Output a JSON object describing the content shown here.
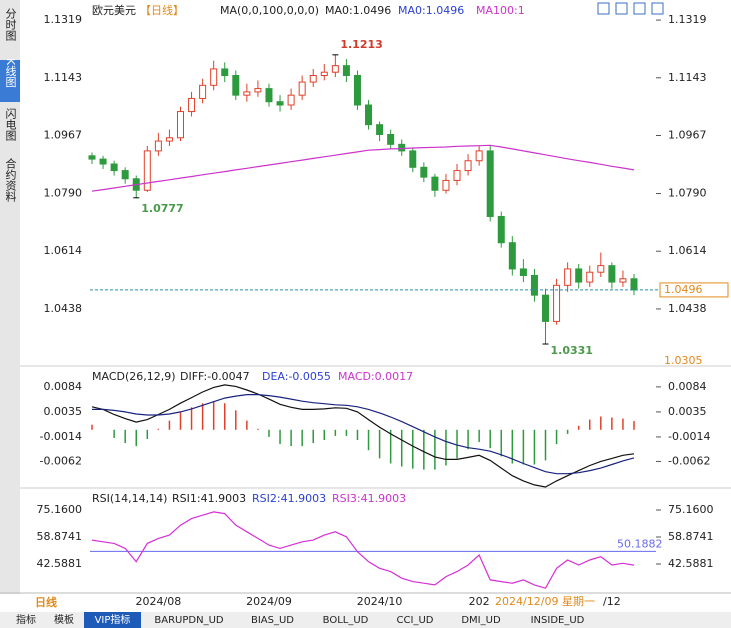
{
  "header": {
    "symbol": "欧元美元",
    "period": "【日线】",
    "ma_label": "MA(0,0,100,0,0,0)",
    "ma0_a": "MA0:1.0496",
    "ma0_b": "MA0:1.0496",
    "ma100": "MA100:1"
  },
  "sidebar": [
    "分时图",
    "K线图",
    "闪电图",
    "合约资料"
  ],
  "footer": {
    "period": "日线",
    "crosshair_date": "2024/12/09 星期一",
    "tabs": [
      "指标",
      "模板",
      "VIP指标",
      "BARUPDN_UD",
      "BIAS_UD",
      "BOLL_UD",
      "CCI_UD",
      "DMI_UD",
      "INSIDE_UD"
    ]
  },
  "chart_data": [
    {
      "type": "candlestick",
      "ylim": [
        1.0267,
        1.1365
      ],
      "yticks": [
        1.1319,
        1.1143,
        1.0967,
        {
          "value": 1.079,
          "label": "1.0790"
        },
        1.0614,
        1.0438
      ],
      "last_price": 1.0496,
      "bottom_price": 1.0305,
      "up_color": "#e0402a",
      "down_color": "#2e9a3e",
      "ma_color": "#cc33cc",
      "categories": [
        null,
        null,
        null,
        null,
        null,
        null,
        "2024/08",
        null,
        null,
        null,
        null,
        null,
        null,
        null,
        null,
        null,
        "2024/09",
        null,
        null,
        null,
        null,
        null,
        null,
        null,
        null,
        null,
        "2024/10",
        null,
        null,
        null,
        null,
        null,
        null,
        null,
        null,
        "202",
        null,
        null,
        null,
        null,
        null,
        null,
        null,
        null,
        null,
        null,
        null,
        "/12",
        null,
        null
      ],
      "open": [
        1.0905,
        1.0895,
        1.088,
        1.086,
        1.0835,
        1.08,
        1.092,
        1.095,
        1.096,
        1.104,
        1.108,
        1.112,
        1.117,
        1.115,
        1.109,
        1.11,
        1.111,
        1.107,
        1.106,
        1.109,
        1.113,
        1.115,
        1.116,
        1.118,
        1.115,
        1.106,
        1.1,
        1.097,
        1.094,
        1.092,
        1.087,
        1.084,
        1.08,
        1.083,
        1.086,
        1.089,
        1.092,
        1.072,
        1.064,
        1.056,
        1.054,
        1.048,
        1.04,
        1.051,
        1.056,
        1.052,
        1.055,
        1.057,
        1.052,
        1.053
      ],
      "high": [
        1.0915,
        1.0905,
        1.089,
        1.087,
        1.0845,
        1.0935,
        1.0975,
        1.0985,
        1.1055,
        1.11,
        1.114,
        1.1195,
        1.119,
        1.1165,
        1.1125,
        1.1135,
        1.1125,
        1.109,
        1.111,
        1.115,
        1.117,
        1.1185,
        1.1213,
        1.12,
        1.1165,
        1.1075,
        1.101,
        1.0985,
        1.0955,
        1.093,
        1.0885,
        1.085,
        1.085,
        1.088,
        1.091,
        1.0935,
        1.0935,
        1.0735,
        1.066,
        1.059,
        1.056,
        1.05,
        1.053,
        1.058,
        1.0575,
        1.057,
        1.061,
        1.058,
        1.0555,
        1.0545
      ],
      "low": [
        1.088,
        1.0865,
        1.0845,
        1.082,
        1.0777,
        1.0795,
        1.0905,
        1.0935,
        1.095,
        1.1025,
        1.1065,
        1.1105,
        1.113,
        1.1075,
        1.107,
        1.1085,
        1.1055,
        1.104,
        1.1045,
        1.1075,
        1.1115,
        1.1135,
        1.1145,
        1.113,
        1.1045,
        1.0985,
        1.095,
        1.0925,
        1.0905,
        1.0855,
        1.0825,
        1.078,
        1.079,
        1.0815,
        1.0845,
        1.0875,
        1.0705,
        1.0625,
        1.054,
        1.052,
        1.046,
        1.0331,
        1.039,
        1.049,
        1.05,
        1.0505,
        1.0535,
        1.05,
        1.0505,
        1.048
      ],
      "close": [
        1.0895,
        1.088,
        1.086,
        1.0835,
        1.08,
        1.092,
        1.095,
        1.096,
        1.104,
        1.108,
        1.112,
        1.117,
        1.115,
        1.109,
        1.11,
        1.111,
        1.107,
        1.106,
        1.109,
        1.113,
        1.115,
        1.116,
        1.118,
        1.115,
        1.106,
        1.1,
        1.097,
        1.094,
        1.092,
        1.087,
        1.084,
        1.08,
        1.083,
        1.086,
        1.089,
        1.092,
        1.072,
        1.064,
        1.056,
        1.054,
        1.048,
        1.04,
        1.051,
        1.056,
        1.052,
        1.055,
        1.057,
        1.052,
        1.053,
        1.0496
      ],
      "ma100": [
        1.0797,
        1.0802,
        1.0807,
        1.0812,
        1.0817,
        1.0822,
        1.0827,
        1.0832,
        1.0837,
        1.0842,
        1.0847,
        1.0852,
        1.0857,
        1.0862,
        1.0867,
        1.0872,
        1.0877,
        1.0882,
        1.0887,
        1.0892,
        1.0897,
        1.0902,
        1.0907,
        1.0912,
        1.0917,
        1.0922,
        1.0924,
        1.0926,
        1.0927,
        1.0929,
        1.093,
        1.0931,
        1.0932,
        1.0934,
        1.0935,
        1.0936,
        1.0937,
        1.0932,
        1.0926,
        1.092,
        1.0914,
        1.0908,
        1.0902,
        1.0896,
        1.089,
        1.0885,
        1.0879,
        1.0873,
        1.0868,
        1.0862
      ]
    },
    {
      "type": "macd",
      "title": "MACD(26,12,9)",
      "diff_label": "DIFF:-0.0047",
      "dea_label": "DEA:-0.0055",
      "macd_label": "MACD:0.0017",
      "ylim": [
        -0.0114,
        0.0121
      ],
      "yticks": [
        0.0084,
        0.0035,
        -0.0014,
        -0.0062
      ],
      "series": [
        {
          "name": "DIFF",
          "color": "#111111",
          "values": [
            0.0045,
            0.004,
            0.003,
            0.0022,
            0.0015,
            0.002,
            0.003,
            0.004,
            0.0052,
            0.0063,
            0.0074,
            0.0083,
            0.0088,
            0.0085,
            0.0078,
            0.007,
            0.006,
            0.005,
            0.0044,
            0.004,
            0.004,
            0.0041,
            0.0043,
            0.0042,
            0.0035,
            0.002,
            0.0005,
            -0.0008,
            -0.002,
            -0.0032,
            -0.0043,
            -0.0053,
            -0.0058,
            -0.0058,
            -0.0054,
            -0.005,
            -0.006,
            -0.0075,
            -0.009,
            -0.01,
            -0.0108,
            -0.0112,
            -0.01,
            -0.009,
            -0.008,
            -0.007,
            -0.0062,
            -0.0056,
            -0.005,
            -0.0047
          ]
        },
        {
          "name": "DEA",
          "color": "#1a237e",
          "values": [
            0.004,
            0.004,
            0.0038,
            0.0035,
            0.0031,
            0.0029,
            0.0029,
            0.0031,
            0.0035,
            0.0041,
            0.0048,
            0.0055,
            0.0062,
            0.0066,
            0.0069,
            0.0069,
            0.0067,
            0.0064,
            0.006,
            0.0056,
            0.0053,
            0.0051,
            0.0049,
            0.0048,
            0.0045,
            0.004,
            0.0033,
            0.0025,
            0.0016,
            0.0006,
            -0.0004,
            -0.0014,
            -0.0023,
            -0.003,
            -0.0035,
            -0.0038,
            -0.0042,
            -0.0049,
            -0.0057,
            -0.0066,
            -0.0074,
            -0.0082,
            -0.0086,
            -0.0086,
            -0.0084,
            -0.008,
            -0.0075,
            -0.0068,
            -0.0061,
            -0.0055
          ]
        },
        {
          "name": "MACD",
          "up_color": "#e0402a",
          "down_color": "#2e9a3e",
          "values": [
            0.001,
            0.0,
            -0.0016,
            -0.0026,
            -0.0032,
            -0.0018,
            0.0002,
            0.0018,
            0.0034,
            0.0044,
            0.0052,
            0.0056,
            0.0052,
            0.0038,
            0.0018,
            0.0002,
            -0.0014,
            -0.0028,
            -0.0032,
            -0.0032,
            -0.0026,
            -0.002,
            -0.0012,
            -0.0012,
            -0.002,
            -0.004,
            -0.0056,
            -0.0066,
            -0.0072,
            -0.0076,
            -0.0078,
            -0.0078,
            -0.007,
            -0.0056,
            -0.0038,
            -0.0024,
            -0.0036,
            -0.0052,
            -0.0066,
            -0.0068,
            -0.0068,
            -0.006,
            -0.0028,
            -0.0008,
            0.0008,
            0.002,
            0.0026,
            0.0024,
            0.0022,
            0.0017
          ]
        }
      ]
    },
    {
      "type": "rsi",
      "title": "RSI(14,14,14)",
      "rsi1_label": "RSI1:41.9003",
      "rsi2_label": "RSI2:41.9003",
      "rsi3_label": "RSI3:41.9003",
      "ylim": [
        25.7,
        87.22
      ],
      "yticks": [
        {
          "value": 75.16,
          "label": "75.1600"
        },
        58.8741,
        42.5881
      ],
      "ref_line": 50.1882,
      "ref_color": "#6a6af0",
      "color": "#d62fd6",
      "values": [
        57,
        56,
        55,
        52,
        44,
        55,
        58,
        60,
        66,
        70,
        72,
        74,
        73,
        66,
        62,
        58,
        54,
        52,
        54,
        56,
        57,
        60,
        62,
        59,
        50,
        44,
        40,
        38,
        34,
        32,
        31,
        30,
        35,
        38,
        42,
        48,
        33,
        32,
        31,
        33,
        30,
        28,
        40,
        45,
        42,
        45,
        47,
        42,
        43,
        41.9003
      ]
    }
  ]
}
